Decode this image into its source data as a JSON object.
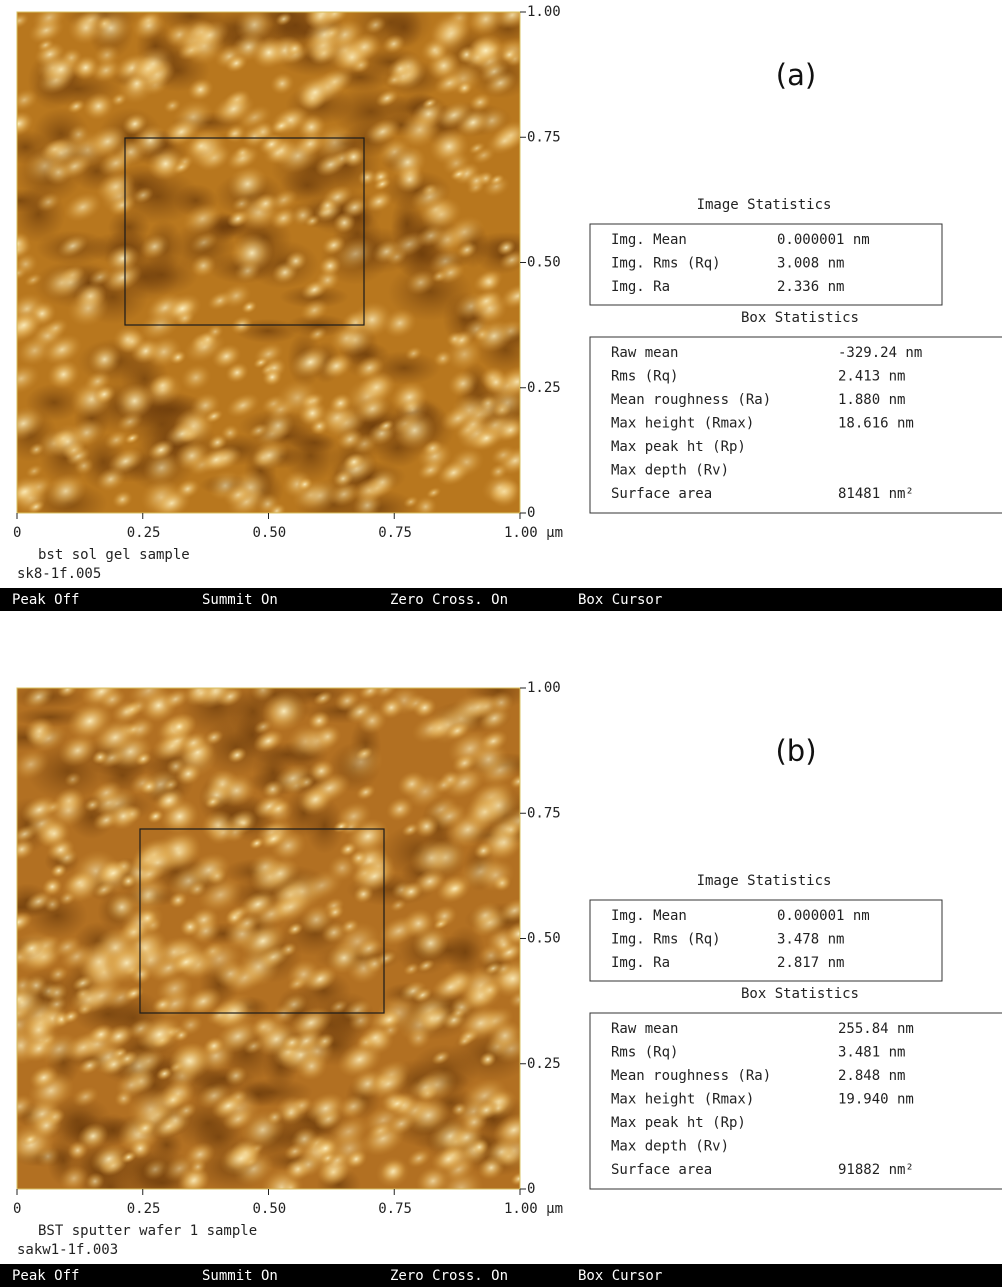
{
  "panels": [
    {
      "label": "(a)",
      "right_ticks": [
        "1.00",
        "0.75",
        "0.50",
        "0.25",
        "0"
      ],
      "bottom_ticks": [
        "0",
        "0.25",
        "0.50",
        "0.75",
        "1.00 µm"
      ],
      "sample_name": "bst sol gel sample",
      "file_name": "sk8-1f.005",
      "status_bar": [
        "Peak Off",
        "Summit On",
        "Zero Cross. On",
        "Box Cursor"
      ],
      "image_statistics": {
        "title": "Image Statistics",
        "rows": [
          [
            "Img. Mean",
            "0.000001 nm"
          ],
          [
            "Img. Rms (Rq)",
            "3.008 nm"
          ],
          [
            "Img. Ra",
            "2.336 nm"
          ]
        ]
      },
      "box_statistics": {
        "title": "Box Statistics",
        "rows": [
          [
            "Raw mean",
            "-329.24 nm"
          ],
          [
            "Rms (Rq)",
            "2.413 nm"
          ],
          [
            "Mean roughness (Ra)",
            "1.880 nm"
          ],
          [
            "Max height (Rmax)",
            "18.616 nm"
          ],
          [
            "Max peak ht (Rp)"
          ],
          [
            "Max depth (Rv)"
          ],
          [
            "Surface area",
            "81481 nm²"
          ]
        ]
      }
    },
    {
      "label": "(b)",
      "right_ticks": [
        "1.00",
        "0.75",
        "0.50",
        "0.25",
        "0"
      ],
      "bottom_ticks": [
        "0",
        "0.25",
        "0.50",
        "0.75",
        "1.00 µm"
      ],
      "sample_name": "BST sputter wafer 1 sample",
      "file_name": "sakw1-1f.003",
      "status_bar": [
        "Peak Off",
        "Summit On",
        "Zero Cross. On",
        "Box Cursor"
      ],
      "image_statistics": {
        "title": "Image Statistics",
        "rows": [
          [
            "Img. Mean",
            "0.000001 nm"
          ],
          [
            "Img. Rms (Rq)",
            "3.478 nm"
          ],
          [
            "Img. Ra",
            "2.817 nm"
          ]
        ]
      },
      "box_statistics": {
        "title": "Box Statistics",
        "rows": [
          [
            "Raw mean",
            "255.84 nm"
          ],
          [
            "Rms (Rq)",
            "3.481 nm"
          ],
          [
            "Mean roughness (Ra)",
            "2.848 nm"
          ],
          [
            "Max height (Rmax)",
            "19.940 nm"
          ],
          [
            "Max peak ht (Rp)"
          ],
          [
            "Max depth (Rv)"
          ],
          [
            "Surface area",
            "91882 nm²"
          ]
        ]
      }
    }
  ]
}
